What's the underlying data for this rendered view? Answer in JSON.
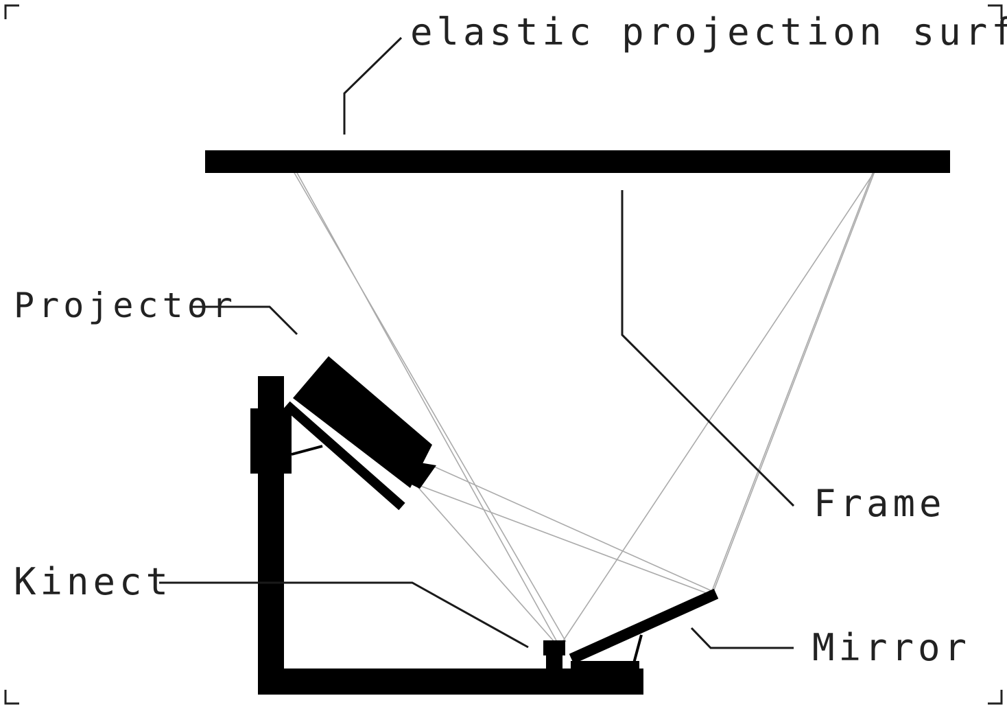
{
  "labels": {
    "surface": "elastic projection surface",
    "projector": "Projector",
    "frame": "Frame",
    "kinect": "Kinect",
    "mirror": "Mirror"
  },
  "colors": {
    "solid": "#000000",
    "beam": "#aaaaaa",
    "text": "#222222"
  }
}
